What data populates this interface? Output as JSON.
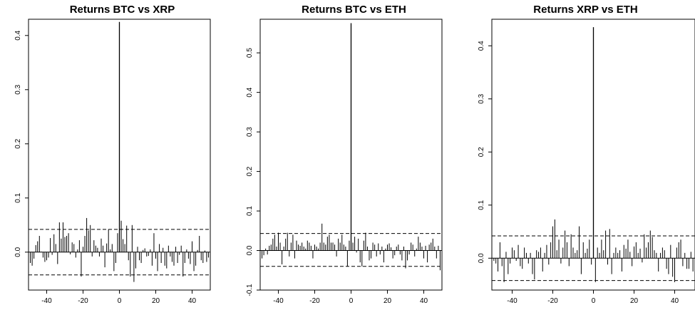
{
  "chart_data": [
    {
      "type": "bar",
      "title": "Returns BTC vs XRP",
      "xlabel": "",
      "ylabel": "",
      "xlim": [
        -50,
        50
      ],
      "ylim": [
        -0.07,
        0.43
      ],
      "x_ticks": [
        -40,
        -20,
        0,
        20,
        40
      ],
      "x_tick_labels": [
        "-40",
        "-20",
        "0",
        "20",
        "40"
      ],
      "y_ticks": [
        0.0,
        0.1,
        0.2,
        0.3,
        0.4
      ],
      "y_tick_labels": [
        "0.0",
        "0.1",
        "0.2",
        "0.3",
        "0.4"
      ],
      "conf_band": [
        0.042,
        -0.042
      ],
      "x": [
        -50,
        -49,
        -48,
        -47,
        -46,
        -45,
        -44,
        -43,
        -42,
        -41,
        -40,
        -39,
        -38,
        -37,
        -36,
        -35,
        -34,
        -33,
        -32,
        -31,
        -30,
        -29,
        -28,
        -27,
        -26,
        -25,
        -24,
        -23,
        -22,
        -21,
        -20,
        -19,
        -18,
        -17,
        -16,
        -15,
        -14,
        -13,
        -12,
        -11,
        -10,
        -9,
        -8,
        -7,
        -6,
        -5,
        -4,
        -3,
        -2,
        -1,
        0,
        1,
        2,
        3,
        4,
        5,
        6,
        7,
        8,
        9,
        10,
        11,
        12,
        13,
        14,
        15,
        16,
        17,
        18,
        19,
        20,
        21,
        22,
        23,
        24,
        25,
        26,
        27,
        28,
        29,
        30,
        31,
        32,
        33,
        34,
        35,
        36,
        37,
        38,
        39,
        40,
        41,
        42,
        43,
        44,
        45,
        46,
        47,
        48,
        49,
        50
      ],
      "values": [
        0.002,
        -0.02,
        -0.025,
        -0.012,
        0.013,
        0.02,
        0.03,
        0.001,
        -0.01,
        -0.018,
        -0.015,
        -0.01,
        0.026,
        -0.005,
        0.033,
        0.015,
        -0.022,
        0.055,
        0.025,
        0.055,
        0.028,
        0.03,
        0.035,
        -0.004,
        0.018,
        0.015,
        -0.01,
        0.005,
        0.022,
        -0.045,
        0.01,
        0.03,
        0.063,
        0.04,
        0.05,
        -0.008,
        0.022,
        0.012,
        0.008,
        -0.008,
        0.025,
        0.012,
        -0.028,
        0.016,
        0.042,
        0.005,
        0.015,
        -0.035,
        -0.02,
        0.035,
        0.425,
        0.058,
        0.024,
        0.015,
        0.049,
        -0.015,
        -0.045,
        0.05,
        -0.055,
        -0.03,
        0.01,
        -0.015,
        -0.02,
        0.004,
        0.007,
        -0.008,
        -0.007,
        0.005,
        -0.025,
        0.035,
        -0.012,
        -0.035,
        0.015,
        -0.02,
        0.008,
        -0.025,
        -0.03,
        0.012,
        -0.008,
        -0.018,
        -0.025,
        0.01,
        -0.02,
        -0.005,
        0.012,
        -0.045,
        -0.02,
        0.005,
        -0.012,
        -0.022,
        0.02,
        -0.035,
        -0.025,
        0.004,
        0.03,
        -0.015,
        -0.02,
        0.003,
        -0.018,
        -0.01,
        0.002
      ]
    },
    {
      "type": "bar",
      "title": "Returns BTC vs ETH",
      "xlabel": "",
      "ylabel": "",
      "xlim": [
        -50,
        50
      ],
      "ylim": [
        -0.1,
        0.585
      ],
      "x_ticks": [
        -40,
        -20,
        0,
        20,
        40
      ],
      "x_tick_labels": [
        "-40",
        "-20",
        "0",
        "20",
        "40"
      ],
      "y_ticks": [
        -0.1,
        0.0,
        0.1,
        0.2,
        0.3,
        0.4,
        0.5
      ],
      "y_tick_labels": [
        "-0.1",
        "0.0",
        "0.1",
        "0.2",
        "0.3",
        "0.4",
        "0.5"
      ],
      "conf_band": [
        0.043,
        -0.04
      ],
      "x": [
        -50,
        -49,
        -48,
        -47,
        -46,
        -45,
        -44,
        -43,
        -42,
        -41,
        -40,
        -39,
        -38,
        -37,
        -36,
        -35,
        -34,
        -33,
        -32,
        -31,
        -30,
        -29,
        -28,
        -27,
        -26,
        -25,
        -24,
        -23,
        -22,
        -21,
        -20,
        -19,
        -18,
        -17,
        -16,
        -15,
        -14,
        -13,
        -12,
        -11,
        -10,
        -9,
        -8,
        -7,
        -6,
        -5,
        -4,
        -3,
        -2,
        -1,
        0,
        1,
        2,
        3,
        4,
        5,
        6,
        7,
        8,
        9,
        10,
        11,
        12,
        13,
        14,
        15,
        16,
        17,
        18,
        19,
        20,
        21,
        22,
        23,
        24,
        25,
        26,
        27,
        28,
        29,
        30,
        31,
        32,
        33,
        34,
        35,
        36,
        37,
        38,
        39,
        40,
        41,
        42,
        43,
        44,
        45,
        46,
        47,
        48,
        49,
        50
      ],
      "values": [
        -0.015,
        -0.02,
        -0.012,
        0.005,
        -0.01,
        0.012,
        0.015,
        0.03,
        0.04,
        0.01,
        0.045,
        0.02,
        -0.035,
        0.01,
        0.03,
        0.045,
        -0.015,
        0.02,
        0.04,
        -0.02,
        0.025,
        0.015,
        0.012,
        0.02,
        0.01,
        0.005,
        0.025,
        0.02,
        0.012,
        -0.02,
        0.015,
        0.01,
        0.005,
        0.02,
        0.068,
        0.02,
        0.015,
        0.035,
        0.04,
        0.02,
        0.02,
        0.015,
        -0.015,
        0.03,
        0.02,
        0.04,
        0.015,
        0.01,
        -0.04,
        0.025,
        0.575,
        0.02,
        0.035,
        -0.005,
        0.03,
        -0.03,
        -0.04,
        0.025,
        0.045,
        0.01,
        -0.025,
        -0.02,
        0.02,
        0.015,
        -0.015,
        0.018,
        -0.01,
        0.01,
        -0.03,
        0.005,
        0.015,
        0.018,
        0.008,
        -0.02,
        -0.012,
        0.01,
        0.015,
        -0.01,
        -0.025,
        0.01,
        -0.045,
        -0.025,
        -0.01,
        0.02,
        0.015,
        -0.015,
        0.005,
        0.035,
        0.02,
        0.01,
        -0.02,
        0.012,
        -0.03,
        0.015,
        0.02,
        0.03,
        0.01,
        -0.02,
        0.012,
        -0.05,
        0.005
      ]
    },
    {
      "type": "bar",
      "title": "Returns XRP vs ETH",
      "xlabel": "",
      "ylabel": "",
      "xlim": [
        -50,
        50
      ],
      "ylim": [
        -0.06,
        0.45
      ],
      "x_ticks": [
        -40,
        -20,
        0,
        20,
        40
      ],
      "x_tick_labels": [
        "-40",
        "-20",
        "0",
        "20",
        "40"
      ],
      "y_ticks": [
        0.0,
        0.1,
        0.2,
        0.3,
        0.4
      ],
      "y_tick_labels": [
        "0.0",
        "0.1",
        "0.2",
        "0.3",
        "0.4"
      ],
      "conf_band": [
        0.042,
        -0.042
      ],
      "x": [
        -50,
        -49,
        -48,
        -47,
        -46,
        -45,
        -44,
        -43,
        -42,
        -41,
        -40,
        -39,
        -38,
        -37,
        -36,
        -35,
        -34,
        -33,
        -32,
        -31,
        -30,
        -29,
        -28,
        -27,
        -26,
        -25,
        -24,
        -23,
        -22,
        -21,
        -20,
        -19,
        -18,
        -17,
        -16,
        -15,
        -14,
        -13,
        -12,
        -11,
        -10,
        -9,
        -8,
        -7,
        -6,
        -5,
        -4,
        -3,
        -2,
        -1,
        0,
        1,
        2,
        3,
        4,
        5,
        6,
        7,
        8,
        9,
        10,
        11,
        12,
        13,
        14,
        15,
        16,
        17,
        18,
        19,
        20,
        21,
        22,
        23,
        24,
        25,
        26,
        27,
        28,
        29,
        30,
        31,
        32,
        33,
        34,
        35,
        36,
        37,
        38,
        39,
        40,
        41,
        42,
        43,
        44,
        45,
        46,
        47,
        48,
        49,
        50
      ],
      "values": [
        0.004,
        -0.005,
        -0.01,
        -0.025,
        0.03,
        -0.015,
        -0.045,
        0.012,
        -0.03,
        -0.01,
        0.02,
        0.015,
        -0.005,
        0.025,
        -0.015,
        -0.02,
        0.02,
        0.01,
        -0.01,
        0.01,
        -0.03,
        -0.04,
        0.015,
        0.012,
        0.02,
        -0.025,
        0.01,
        0.025,
        -0.012,
        0.03,
        0.06,
        0.073,
        0.015,
        0.035,
        -0.01,
        0.02,
        0.052,
        0.03,
        -0.015,
        0.045,
        0.02,
        0.01,
        0.015,
        0.06,
        -0.03,
        0.03,
        0.01,
        0.018,
        0.035,
        -0.012,
        0.435,
        -0.045,
        0.02,
        0.01,
        0.035,
        0.015,
        0.052,
        -0.012,
        0.055,
        -0.03,
        0.01,
        0.02,
        0.01,
        0.015,
        -0.025,
        0.025,
        0.018,
        0.035,
        0.012,
        -0.015,
        0.022,
        0.03,
        0.01,
        0.018,
        -0.008,
        0.045,
        0.02,
        0.03,
        0.052,
        0.04,
        0.015,
        0.01,
        -0.025,
        0.01,
        0.02,
        0.015,
        -0.02,
        -0.03,
        0.025,
        -0.035,
        -0.045,
        0.02,
        0.03,
        0.035,
        -0.015,
        0.01,
        -0.02,
        -0.02,
        0.012,
        -0.025,
        0.01
      ]
    }
  ]
}
